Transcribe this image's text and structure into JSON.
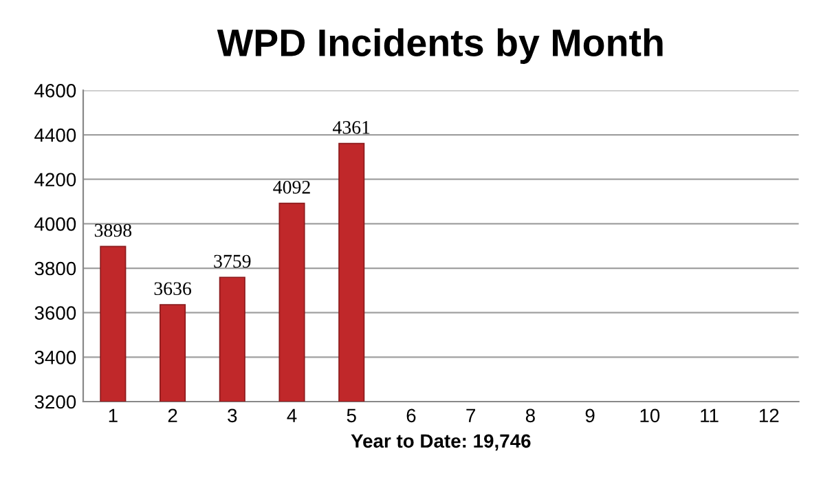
{
  "chart_data": {
    "type": "bar",
    "title": "WPD Incidents by Month",
    "xlabel": "Year to Date: 19,746",
    "categories": [
      "1",
      "2",
      "3",
      "4",
      "5",
      "6",
      "7",
      "8",
      "9",
      "10",
      "11",
      "12"
    ],
    "values": [
      3898,
      3636,
      3759,
      4092,
      4361,
      null,
      null,
      null,
      null,
      null,
      null,
      null
    ],
    "color": "#c0282a",
    "ylim": [
      3200,
      4600
    ],
    "yticks": [
      3200,
      3400,
      3600,
      3800,
      4000,
      4200,
      4400,
      4600
    ],
    "grid": "y",
    "data_labels": true
  }
}
